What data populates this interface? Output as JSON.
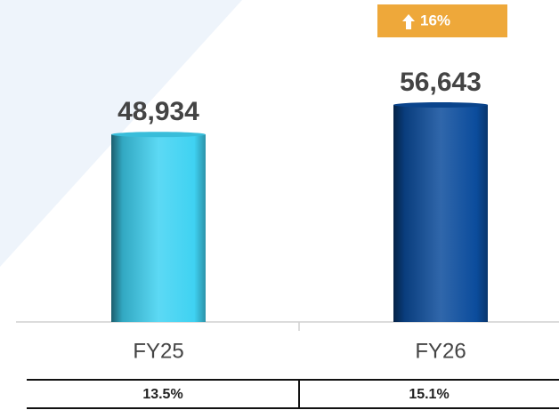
{
  "chart_data": {
    "type": "bar",
    "categories": [
      "FY25",
      "FY26"
    ],
    "values": [
      48934,
      56643
    ],
    "value_labels": [
      "48,934",
      "56,643"
    ],
    "colors": [
      "#3fd2f2",
      "#0b4c9c"
    ],
    "annotation": "16%",
    "table_row": [
      "13.5%",
      "15.1%"
    ]
  }
}
